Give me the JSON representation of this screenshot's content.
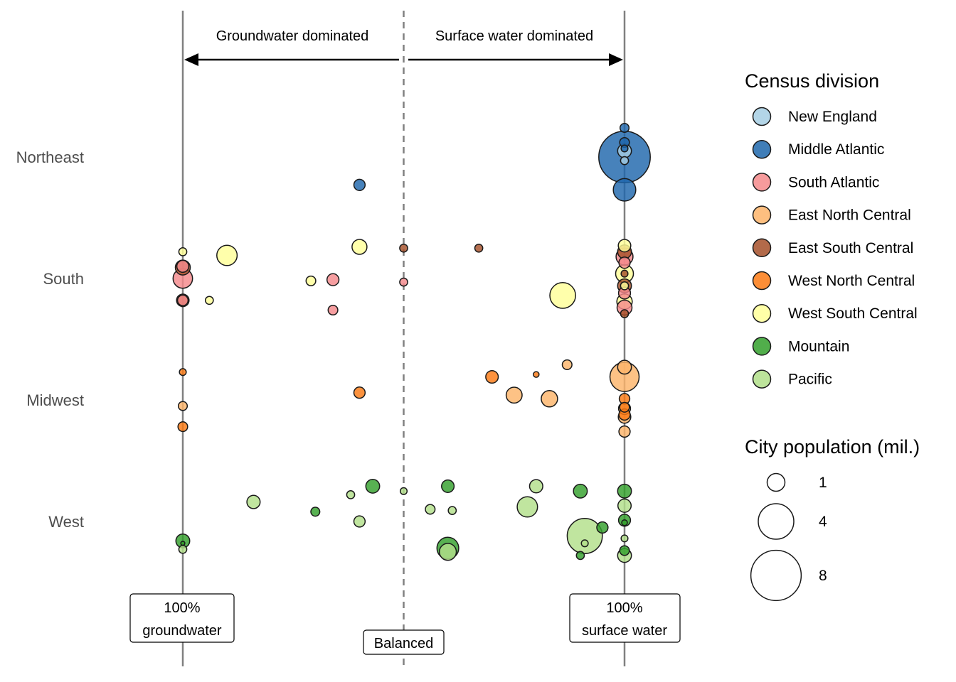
{
  "chart_data": {
    "type": "scatter",
    "title": "",
    "xlabel": "",
    "ylabel": "",
    "x_description": "source balance: 0 = 100% groundwater, 0.5 = balanced, 1 = 100% surface water",
    "xlim": [
      0,
      1
    ],
    "categories": [
      "Northeast",
      "South",
      "Midwest",
      "West"
    ],
    "annotations": {
      "groundwater_dominated": "Groundwater dominated",
      "surface_water_dominated": "Surface water dominated",
      "left_box": [
        "100%",
        "groundwater"
      ],
      "middle_box": "Balanced",
      "right_box": [
        "100%",
        "surface water"
      ]
    },
    "divisions": [
      {
        "name": "New England",
        "color": "#a6cee3"
      },
      {
        "name": "Middle Atlantic",
        "color": "#1f67ac"
      },
      {
        "name": "South Atlantic",
        "color": "#f4898b"
      },
      {
        "name": "East North Central",
        "color": "#fdb46a"
      },
      {
        "name": "East South Central",
        "color": "#a6502a"
      },
      {
        "name": "West North Central",
        "color": "#fb7a14"
      },
      {
        "name": "West South Central",
        "color": "#ffff99"
      },
      {
        "name": "Mountain",
        "color": "#33a02c"
      },
      {
        "name": "Pacific",
        "color": "#b2df8a"
      }
    ],
    "size_legend": {
      "title": "City population (mil.)",
      "values": [
        1,
        4,
        8
      ]
    },
    "points": [
      {
        "region": "Northeast",
        "division": "Middle Atlantic",
        "x": 1.0,
        "jitter": -0.24,
        "pop": 0.25
      },
      {
        "region": "Northeast",
        "division": "Middle Atlantic",
        "x": 0.4,
        "jitter": 0.23,
        "pop": 0.4
      },
      {
        "region": "Northeast",
        "division": "Middle Atlantic",
        "x": 1.0,
        "jitter": -0.12,
        "pop": 0.3
      },
      {
        "region": "Northeast",
        "division": "Middle Atlantic",
        "x": 1.0,
        "jitter": 0.0,
        "pop": 8.4
      },
      {
        "region": "Northeast",
        "division": "Middle Atlantic",
        "x": 1.0,
        "jitter": 0.27,
        "pop": 1.6
      },
      {
        "region": "Northeast",
        "division": "New England",
        "x": 1.0,
        "jitter": -0.05,
        "pop": 0.6
      },
      {
        "region": "Northeast",
        "division": "New England",
        "x": 1.0,
        "jitter": 0.03,
        "pop": 0.2
      },
      {
        "region": "Northeast",
        "division": "Middle Atlantic",
        "x": 1.0,
        "jitter": -0.07,
        "pop": 0.15
      },
      {
        "region": "South",
        "division": "West South Central",
        "x": 0.0,
        "jitter": -0.22,
        "pop": 0.2
      },
      {
        "region": "South",
        "division": "South Atlantic",
        "x": 0.0,
        "jitter": -0.1,
        "pop": 0.45
      },
      {
        "region": "South",
        "division": "East South Central",
        "x": 0.0,
        "jitter": -0.09,
        "pop": 0.7
      },
      {
        "region": "South",
        "division": "South Atlantic",
        "x": 0.0,
        "jitter": 0.0,
        "pop": 1.2
      },
      {
        "region": "South",
        "division": "East South Central",
        "x": 0.0,
        "jitter": 0.18,
        "pop": 0.5
      },
      {
        "region": "South",
        "division": "South Atlantic",
        "x": 0.0,
        "jitter": 0.18,
        "pop": 0.35
      },
      {
        "region": "South",
        "division": "West South Central",
        "x": 0.1,
        "jitter": -0.19,
        "pop": 1.3
      },
      {
        "region": "South",
        "division": "West South Central",
        "x": 0.06,
        "jitter": 0.18,
        "pop": 0.2
      },
      {
        "region": "South",
        "division": "West South Central",
        "x": 0.29,
        "jitter": 0.02,
        "pop": 0.3
      },
      {
        "region": "South",
        "division": "South Atlantic",
        "x": 0.34,
        "jitter": 0.01,
        "pop": 0.45
      },
      {
        "region": "South",
        "division": "South Atlantic",
        "x": 0.34,
        "jitter": 0.26,
        "pop": 0.3
      },
      {
        "region": "South",
        "division": "West South Central",
        "x": 0.4,
        "jitter": -0.26,
        "pop": 0.7
      },
      {
        "region": "South",
        "division": "East South Central",
        "x": 0.5,
        "jitter": -0.25,
        "pop": 0.2
      },
      {
        "region": "South",
        "division": "South Atlantic",
        "x": 0.5,
        "jitter": 0.03,
        "pop": 0.2
      },
      {
        "region": "South",
        "division": "East South Central",
        "x": 0.67,
        "jitter": -0.25,
        "pop": 0.2
      },
      {
        "region": "South",
        "division": "West South Central",
        "x": 0.86,
        "jitter": 0.14,
        "pop": 2.1
      },
      {
        "region": "South",
        "division": "West South Central",
        "x": 1.0,
        "jitter": -0.27,
        "pop": 0.5
      },
      {
        "region": "South",
        "division": "East South Central",
        "x": 1.0,
        "jitter": -0.22,
        "pop": 0.6
      },
      {
        "region": "South",
        "division": "South Atlantic",
        "x": 1.0,
        "jitter": -0.18,
        "pop": 0.9
      },
      {
        "region": "South",
        "division": "South Atlantic",
        "x": 1.0,
        "jitter": -0.13,
        "pop": 0.4
      },
      {
        "region": "South",
        "division": "West South Central",
        "x": 1.0,
        "jitter": -0.04,
        "pop": 1.0
      },
      {
        "region": "South",
        "division": "East South Central",
        "x": 1.0,
        "jitter": -0.04,
        "pop": 0.15
      },
      {
        "region": "South",
        "division": "East South Central",
        "x": 1.0,
        "jitter": 0.06,
        "pop": 0.6
      },
      {
        "region": "South",
        "division": "West South Central",
        "x": 1.0,
        "jitter": 0.06,
        "pop": 0.2
      },
      {
        "region": "South",
        "division": "South Atlantic",
        "x": 1.0,
        "jitter": 0.12,
        "pop": 0.45
      },
      {
        "region": "South",
        "division": "West South Central",
        "x": 1.0,
        "jitter": 0.19,
        "pop": 0.75
      },
      {
        "region": "South",
        "division": "South Atlantic",
        "x": 1.0,
        "jitter": 0.24,
        "pop": 0.7
      },
      {
        "region": "South",
        "division": "East South Central",
        "x": 1.0,
        "jitter": 0.29,
        "pop": 0.2
      },
      {
        "region": "Midwest",
        "division": "West North Central",
        "x": 0.0,
        "jitter": -0.23,
        "pop": 0.15
      },
      {
        "region": "Midwest",
        "division": "East North Central",
        "x": 0.0,
        "jitter": 0.05,
        "pop": 0.25
      },
      {
        "region": "Midwest",
        "division": "West North Central",
        "x": 0.0,
        "jitter": 0.22,
        "pop": 0.3
      },
      {
        "region": "Midwest",
        "division": "West North Central",
        "x": 0.4,
        "jitter": -0.06,
        "pop": 0.4
      },
      {
        "region": "Midwest",
        "division": "West North Central",
        "x": 0.7,
        "jitter": -0.19,
        "pop": 0.5
      },
      {
        "region": "Midwest",
        "division": "West North Central",
        "x": 0.8,
        "jitter": -0.21,
        "pop": 0.1
      },
      {
        "region": "Midwest",
        "division": "East North Central",
        "x": 0.75,
        "jitter": -0.04,
        "pop": 0.8
      },
      {
        "region": "Midwest",
        "division": "East North Central",
        "x": 0.83,
        "jitter": -0.01,
        "pop": 0.85
      },
      {
        "region": "Midwest",
        "division": "East North Central",
        "x": 0.87,
        "jitter": -0.29,
        "pop": 0.3
      },
      {
        "region": "Midwest",
        "division": "East North Central",
        "x": 1.0,
        "jitter": -0.27,
        "pop": 0.6
      },
      {
        "region": "Midwest",
        "division": "East North Central",
        "x": 1.0,
        "jitter": -0.19,
        "pop": 2.7
      },
      {
        "region": "Midwest",
        "division": "West North Central",
        "x": 1.0,
        "jitter": -0.01,
        "pop": 0.35
      },
      {
        "region": "Midwest",
        "division": "West North Central",
        "x": 1.0,
        "jitter": 0.06,
        "pop": 0.3
      },
      {
        "region": "Midwest",
        "division": "East North Central",
        "x": 1.0,
        "jitter": 0.07,
        "pop": 0.45
      },
      {
        "region": "Midwest",
        "division": "West North Central",
        "x": 1.0,
        "jitter": 0.12,
        "pop": 0.4
      },
      {
        "region": "Midwest",
        "division": "East North Central",
        "x": 1.0,
        "jitter": 0.14,
        "pop": 0.5
      },
      {
        "region": "Midwest",
        "division": "East North Central",
        "x": 1.0,
        "jitter": 0.26,
        "pop": 0.4
      },
      {
        "region": "West",
        "division": "Mountain",
        "x": 0.0,
        "jitter": 0.16,
        "pop": 0.6
      },
      {
        "region": "West",
        "division": "Mountain",
        "x": 0.0,
        "jitter": 0.18,
        "pop": 0.05
      },
      {
        "region": "West",
        "division": "Pacific",
        "x": 0.0,
        "jitter": 0.23,
        "pop": 0.2
      },
      {
        "region": "West",
        "division": "Mountain",
        "x": 0.0,
        "jitter": 0.18,
        "pop": 0.05
      },
      {
        "region": "West",
        "division": "Pacific",
        "x": 0.16,
        "jitter": -0.16,
        "pop": 0.55
      },
      {
        "region": "West",
        "division": "Mountain",
        "x": 0.3,
        "jitter": -0.08,
        "pop": 0.25
      },
      {
        "region": "West",
        "division": "Pacific",
        "x": 0.38,
        "jitter": -0.22,
        "pop": 0.2
      },
      {
        "region": "West",
        "division": "Mountain",
        "x": 0.43,
        "jitter": -0.29,
        "pop": 0.6
      },
      {
        "region": "West",
        "division": "Pacific",
        "x": 0.4,
        "jitter": 0.0,
        "pop": 0.4
      },
      {
        "region": "West",
        "division": "Pacific",
        "x": 0.5,
        "jitter": -0.25,
        "pop": 0.15
      },
      {
        "region": "West",
        "division": "Pacific",
        "x": 0.56,
        "jitter": -0.1,
        "pop": 0.3
      },
      {
        "region": "West",
        "division": "Pacific",
        "x": 0.61,
        "jitter": -0.09,
        "pop": 0.2
      },
      {
        "region": "West",
        "division": "Mountain",
        "x": 0.6,
        "jitter": -0.29,
        "pop": 0.5
      },
      {
        "region": "West",
        "division": "Mountain",
        "x": 0.6,
        "jitter": 0.22,
        "pop": 1.5
      },
      {
        "region": "West",
        "division": "Pacific",
        "x": 0.6,
        "jitter": 0.25,
        "pop": 0.9
      },
      {
        "region": "West",
        "division": "Pacific",
        "x": 0.78,
        "jitter": -0.12,
        "pop": 1.3
      },
      {
        "region": "West",
        "division": "Pacific",
        "x": 0.8,
        "jitter": -0.29,
        "pop": 0.55
      },
      {
        "region": "West",
        "division": "Mountain",
        "x": 0.9,
        "jitter": -0.25,
        "pop": 0.6
      },
      {
        "region": "West",
        "division": "Mountain",
        "x": 0.95,
        "jitter": 0.05,
        "pop": 0.4
      },
      {
        "region": "West",
        "division": "Pacific",
        "x": 0.91,
        "jitter": 0.12,
        "pop": 3.9
      },
      {
        "region": "West",
        "division": "Pacific",
        "x": 0.91,
        "jitter": 0.18,
        "pop": 0.15
      },
      {
        "region": "West",
        "division": "Mountain",
        "x": 0.9,
        "jitter": 0.28,
        "pop": 0.2
      },
      {
        "region": "West",
        "division": "Mountain",
        "x": 1.0,
        "jitter": -0.25,
        "pop": 0.6
      },
      {
        "region": "West",
        "division": "Pacific",
        "x": 1.0,
        "jitter": -0.13,
        "pop": 0.55
      },
      {
        "region": "West",
        "division": "Mountain",
        "x": 1.0,
        "jitter": -0.01,
        "pop": 0.45
      },
      {
        "region": "West",
        "division": "Mountain",
        "x": 1.0,
        "jitter": 0.01,
        "pop": 0.1
      },
      {
        "region": "West",
        "division": "Pacific",
        "x": 1.0,
        "jitter": 0.14,
        "pop": 0.15
      },
      {
        "region": "West",
        "division": "Mountain",
        "x": 1.0,
        "jitter": 0.24,
        "pop": 0.3
      },
      {
        "region": "West",
        "division": "Pacific",
        "x": 1.0,
        "jitter": 0.28,
        "pop": 0.6
      }
    ]
  }
}
